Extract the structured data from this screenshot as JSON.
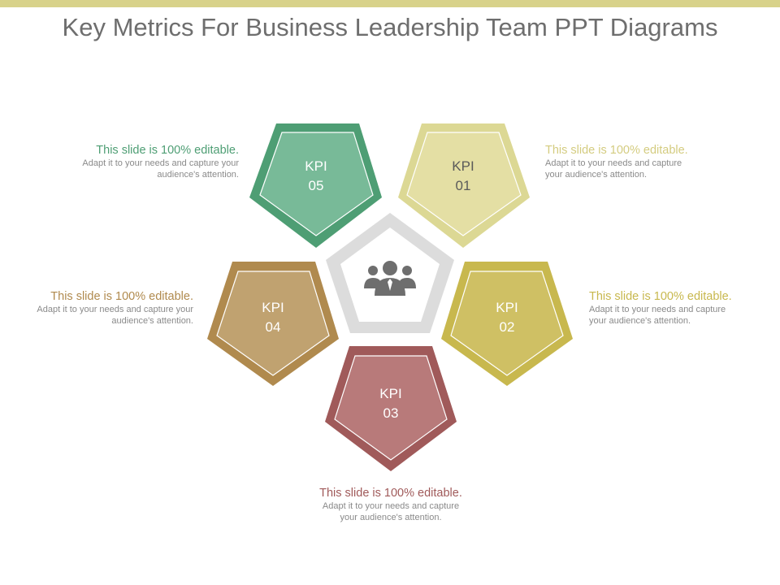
{
  "title": "Key Metrics For Business Leadership Team PPT Diagrams",
  "kpis": [
    {
      "line1": "KPI",
      "line2": "01",
      "color": "#dcd894",
      "note_head": "This slide is 100% editable.",
      "note_body": "Adapt it to your needs and capture your audience's attention."
    },
    {
      "line1": "KPI",
      "line2": "02",
      "color": "#c8b84e",
      "note_head": "This slide is 100% editable.",
      "note_body": "Adapt it to your needs and capture your audience's attention."
    },
    {
      "line1": "KPI",
      "line2": "03",
      "color": "#a05a5a",
      "note_head": "This slide is 100% editable.",
      "note_body": "Adapt it to your needs and capture your audience's attention."
    },
    {
      "line1": "KPI",
      "line2": "04",
      "color": "#b08a4e",
      "note_head": "This slide is 100% editable.",
      "note_body": "Adapt it to your needs and capture your audience's attention."
    },
    {
      "line1": "KPI",
      "line2": "05",
      "color": "#4e9e74",
      "note_head": "This slide is 100% editable.",
      "note_body": "Adapt it to your needs and capture your audience's attention."
    }
  ],
  "center_icon": "team-icon"
}
